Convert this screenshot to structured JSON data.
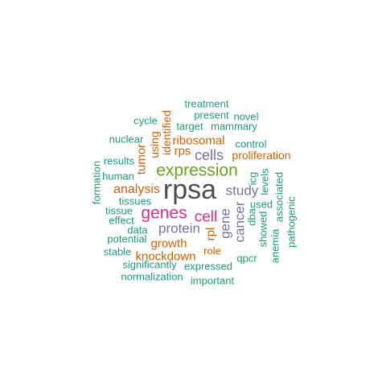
{
  "colors": {
    "gray": "#4d4d4d",
    "green": "#1b9e77",
    "orange": "#d95f02",
    "purple": "#7570b3",
    "magenta": "#e7298a",
    "lime": "#66a61e"
  },
  "words": {
    "rpsa": "rpsa",
    "expression": "expression",
    "genes": "genes",
    "cell": "cell",
    "cells": "cells",
    "protein": "protein",
    "study": "study",
    "cancer": "cancer",
    "gene": "gene",
    "analysis": "analysis",
    "ribosomal": "ribosomal",
    "rpl": "rpl",
    "rps": "rps",
    "tumor": "tumor",
    "growth": "growth",
    "knockdown": "knockdown",
    "identified": "identified",
    "using": "using",
    "proliferation": "proliferation",
    "role": "role",
    "treatment": "treatment",
    "present": "present",
    "novel": "novel",
    "cycle": "cycle",
    "target": "target",
    "mammary": "mammary",
    "nuclear": "nuclear",
    "control": "control",
    "results": "results",
    "icg": "icg",
    "levels": "levels",
    "human": "human",
    "formation": "formation",
    "associated": "associated",
    "tissues": "tissues",
    "used": "used",
    "dba": "dba",
    "pathogenic": "pathogenic",
    "tissue": "tissue",
    "showed": "showed",
    "effect": "effect",
    "anemia": "anemia",
    "data": "data",
    "potential": "potential",
    "stable": "stable",
    "qpcr": "qpcr",
    "significantly": "significantly",
    "expressed": "expressed",
    "normalization": "normalization",
    "important": "important"
  }
}
